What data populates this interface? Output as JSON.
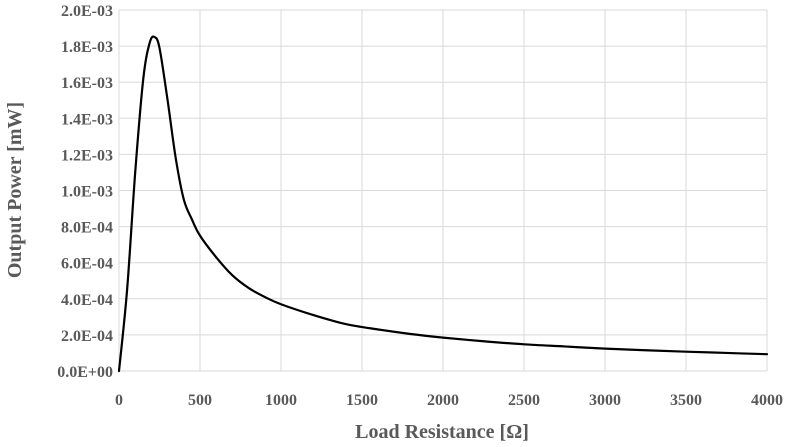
{
  "chart_data": {
    "type": "line",
    "title": "",
    "xlabel": "Load Resistance [Ω]",
    "ylabel": "Output Power [mW]",
    "xlim": [
      0,
      4000
    ],
    "ylim": [
      0,
      0.002
    ],
    "grid": true,
    "legend": "none",
    "x_ticks": [
      "0",
      "500",
      "1000",
      "1500",
      "2000",
      "2500",
      "3000",
      "3500",
      "4000"
    ],
    "y_ticks": [
      "0.0E+00",
      "2.0E-04",
      "4.0E-04",
      "6.0E-04",
      "8.0E-04",
      "1.0E-03",
      "1.2E-03",
      "1.4E-03",
      "1.6E-03",
      "1.8E-03",
      "2.0E-03"
    ],
    "series": [
      {
        "color": "#000000",
        "points": [
          [
            0,
            0
          ],
          [
            50,
            0.00045
          ],
          [
            100,
            0.0011
          ],
          [
            150,
            0.00162
          ],
          [
            190,
            0.00182
          ],
          [
            220,
            0.00185
          ],
          [
            250,
            0.00179
          ],
          [
            300,
            0.0015
          ],
          [
            350,
            0.00118
          ],
          [
            400,
            0.00095
          ],
          [
            450,
            0.00084
          ],
          [
            500,
            0.00075
          ],
          [
            600,
            0.00063
          ],
          [
            700,
            0.00053
          ],
          [
            800,
            0.00046
          ],
          [
            900,
            0.00041
          ],
          [
            1000,
            0.00037
          ],
          [
            1200,
            0.00031
          ],
          [
            1400,
            0.00026
          ],
          [
            1600,
            0.00023
          ],
          [
            1800,
            0.000205
          ],
          [
            2000,
            0.000185
          ],
          [
            2250,
            0.000165
          ],
          [
            2500,
            0.000148
          ],
          [
            2750,
            0.000136
          ],
          [
            3000,
            0.000124
          ],
          [
            3250,
            0.000115
          ],
          [
            3500,
            0.000107
          ],
          [
            3750,
            0.0001
          ],
          [
            4000,
            9.3e-05
          ]
        ]
      }
    ]
  }
}
